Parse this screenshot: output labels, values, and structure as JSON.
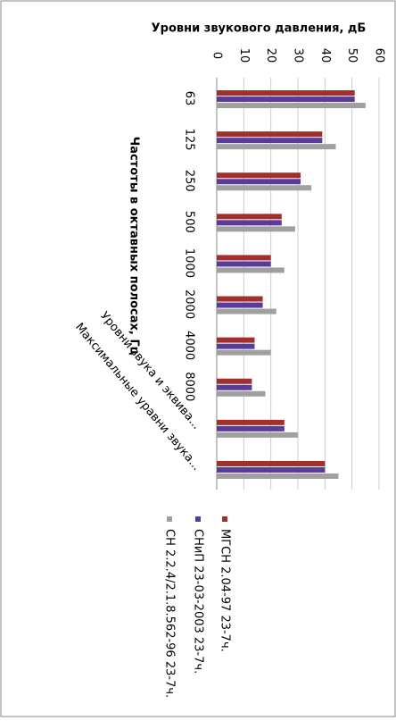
{
  "chart_data": {
    "type": "bar",
    "title": "Уровни звукового давления, дБ",
    "x_label": "Частоты в октавных полосах, Гц",
    "categories": [
      "63",
      "125",
      "250",
      "500",
      "1000",
      "2000",
      "4000",
      "8000",
      "Уровни звука и эквива...",
      "Максимальные уравни звука..."
    ],
    "series": [
      {
        "name": "МГСН 2.04-97 23-7ч.",
        "color": "#a0302c",
        "values": [
          51,
          39,
          31,
          24,
          20,
          17,
          14,
          13,
          25,
          40
        ]
      },
      {
        "name": "СНиП 23-03-2003 23-7ч.",
        "color": "#5a3a9a",
        "values": [
          51,
          39,
          31,
          24,
          20,
          17,
          14,
          13,
          25,
          40
        ]
      },
      {
        "name": "СН 2.2.4/2.1.8.562-96 23-7ч.",
        "color": "#a0a0a0",
        "values": [
          55,
          44,
          35,
          29,
          25,
          22,
          20,
          18,
          30,
          45
        ]
      }
    ],
    "ylim": [
      0,
      60
    ],
    "yticks": [
      0,
      10,
      20,
      30,
      40,
      50,
      60
    ],
    "grid": true
  }
}
